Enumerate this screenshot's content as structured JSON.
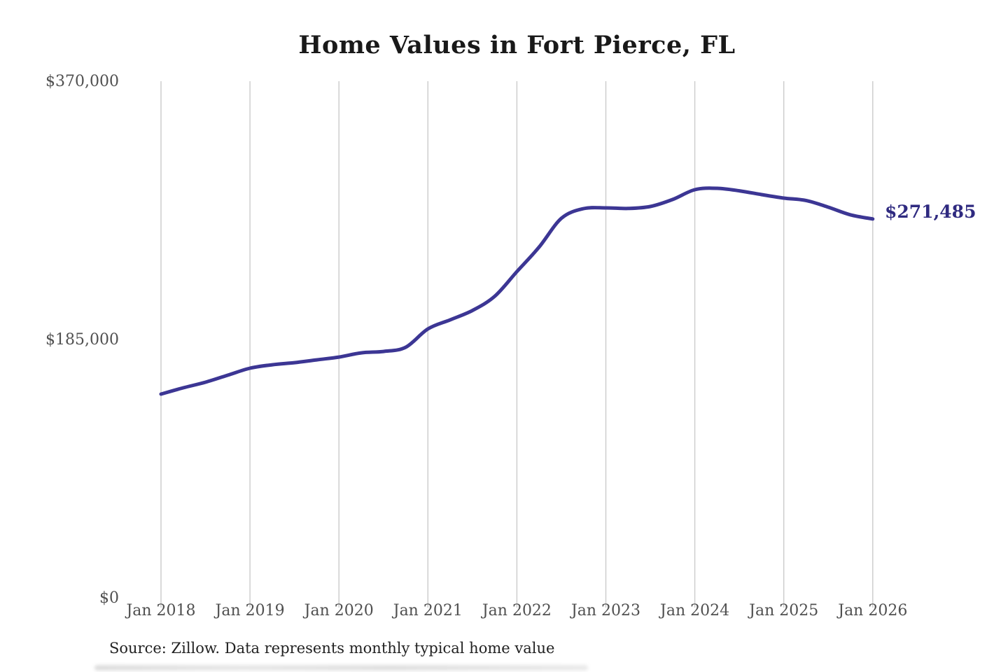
{
  "title": "Home Values in Fort Pierce, FL",
  "source_note": "Source: Zillow. Data represents monthly typical home value",
  "end_label": "$271,485",
  "colors": {
    "line": "#3c3694",
    "end_label": "#2f2a80",
    "gridline": "#cbcbcb",
    "axis_text": "#505050",
    "title_text": "#191919",
    "source_text": "#222222",
    "background": "#ffffff"
  },
  "y_axis": {
    "ticks": [
      "$370,000",
      "$185,000",
      "$0"
    ],
    "max": 370000,
    "min": 0
  },
  "x_axis": {
    "ticks": [
      "Jan 2018",
      "Jan 2019",
      "Jan 2020",
      "Jan 2021",
      "Jan 2022",
      "Jan 2023",
      "Jan 2024",
      "Jan 2025",
      "Jan 2026"
    ]
  },
  "chart_data": {
    "type": "line",
    "title": "Home Values in Fort Pierce, FL",
    "series_name": "Monthly typical home value (USD)",
    "x_unit": "months since Jan 2018",
    "x": [
      0,
      3,
      6,
      9,
      12,
      15,
      18,
      21,
      24,
      27,
      30,
      33,
      36,
      39,
      42,
      45,
      48,
      51,
      54,
      57,
      60,
      63,
      66,
      69,
      72,
      75,
      78,
      81,
      84,
      87,
      90,
      93,
      96
    ],
    "values": [
      146200,
      150700,
      154700,
      159700,
      164700,
      167200,
      168700,
      170700,
      172700,
      175700,
      176700,
      179700,
      192800,
      199300,
      206000,
      216100,
      233800,
      251400,
      271900,
      278900,
      279400,
      279000,
      280400,
      285400,
      292400,
      293400,
      291600,
      288900,
      286400,
      284700,
      279900,
      274400,
      271485
    ],
    "x_tick_labels": [
      "Jan 2018",
      "Jan 2019",
      "Jan 2020",
      "Jan 2021",
      "Jan 2022",
      "Jan 2023",
      "Jan 2024",
      "Jan 2025",
      "Jan 2026"
    ],
    "y_tick_labels": [
      "$0",
      "$185,000",
      "$370,000"
    ],
    "ylim": [
      0,
      370000
    ],
    "xlim_months": [
      0,
      96
    ],
    "final_value": 271485,
    "final_value_label": "$271,485",
    "grid": "vertical-only",
    "legend": "none"
  }
}
